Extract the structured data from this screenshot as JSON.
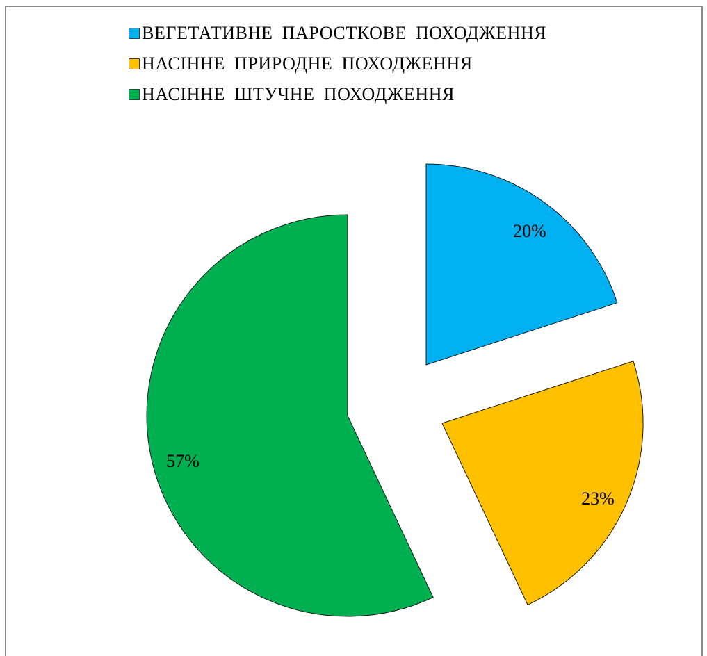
{
  "chart_data": {
    "type": "pie",
    "legend_position": "top",
    "exploded": true,
    "series": [
      {
        "name": "ВЕГЕТАТИВНЕ ПАРОСТКОВЕ ПОХОДЖЕННЯ",
        "value": 20,
        "label": "20%",
        "color": "#00B0F0"
      },
      {
        "name": "НАСІННЕ ПРИРОДНЕ ПОХОДЖЕННЯ",
        "value": 23,
        "label": "23%",
        "color": "#FFC000"
      },
      {
        "name": "НАСІННЕ ШТУЧНЕ ПОХОДЖЕННЯ",
        "value": 57,
        "label": "57%",
        "color": "#00B050"
      }
    ]
  }
}
